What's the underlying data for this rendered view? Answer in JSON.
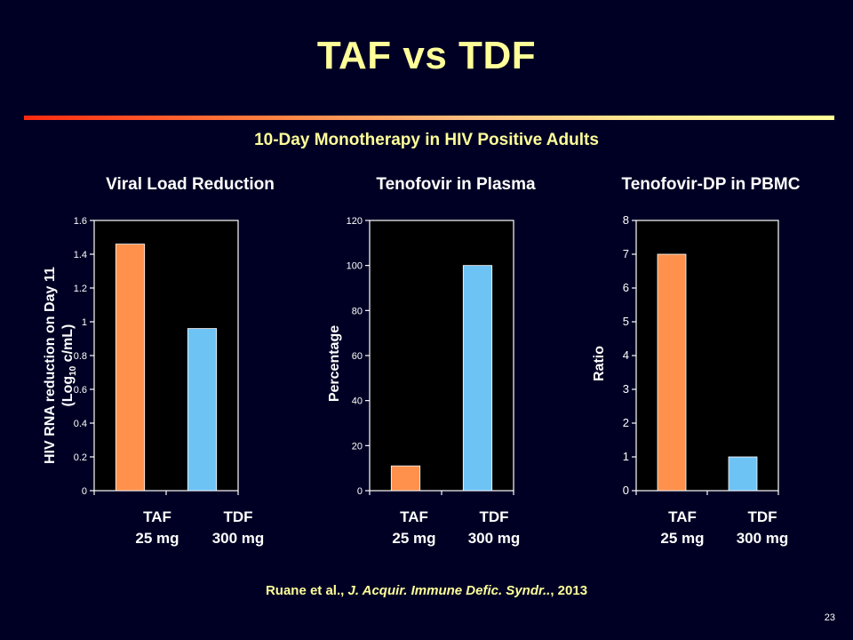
{
  "slide": {
    "title": "TAF vs TDF",
    "subtitle": "10-Day Monotherapy in HIV Positive Adults",
    "citation": {
      "authors": "Ruane  et al., ",
      "journal": "J. Acquir. Immune Defic. Syndr..",
      "year": ", 2013"
    },
    "page_number": "23",
    "colors": {
      "background": "#000025",
      "title": "#ffff99",
      "taf_bar": "#ff914d",
      "tdf_bar": "#6ec3f5",
      "plot_bg": "#000000"
    }
  },
  "chart_data": [
    {
      "type": "bar",
      "title": "Viral Load Reduction",
      "ylabel_line1": "HIV RNA reduction  on Day 11",
      "ylabel_line2_pre": "(Log",
      "ylabel_line2_sub": "10",
      "ylabel_line2_post": " c/mL)",
      "categories": [
        [
          "TAF",
          "25 mg"
        ],
        [
          "TDF",
          "300 mg"
        ]
      ],
      "values": [
        1.46,
        0.96
      ],
      "ylim": [
        0,
        1.6
      ],
      "yticks": [
        "0",
        "0.2",
        "0.4",
        "0.6",
        "0.8",
        "1",
        "1.2",
        "1.4",
        "1.6"
      ],
      "grid": false
    },
    {
      "type": "bar",
      "title": "Tenofovir in Plasma",
      "ylabel": "Percentage",
      "categories": [
        [
          "TAF",
          "25 mg"
        ],
        [
          "TDF",
          "300 mg"
        ]
      ],
      "values": [
        11,
        100
      ],
      "ylim": [
        0,
        120
      ],
      "yticks": [
        "0",
        "20",
        "40",
        "60",
        "80",
        "100",
        "120"
      ],
      "grid": false
    },
    {
      "type": "bar",
      "title": "Tenofovir-DP in PBMC",
      "ylabel": "Ratio",
      "categories": [
        [
          "TAF",
          "25 mg"
        ],
        [
          "TDF",
          "300 mg"
        ]
      ],
      "values": [
        7,
        1
      ],
      "ylim": [
        0,
        8
      ],
      "yticks": [
        "0",
        "1",
        "2",
        "3",
        "4",
        "5",
        "6",
        "7",
        "8"
      ],
      "grid": false
    }
  ]
}
